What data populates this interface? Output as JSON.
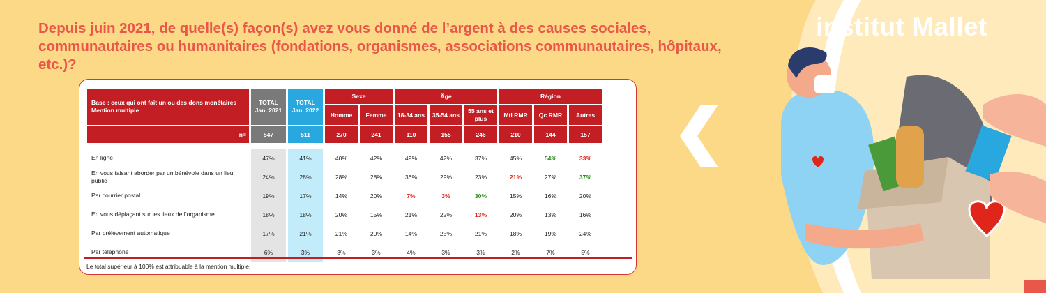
{
  "question": "Depuis juin 2021, de quelle(s) façon(s) avez vous donné de l’argent à des causes sociales, communautaires ou humanitaires (fondations, organismes, associations communautaires, hôpitaux, etc.)?",
  "brand": "institut Mallet",
  "colors": {
    "accent": "#e8574a",
    "header_red": "#c21e24",
    "total_2021": "#7a7a7a",
    "total_2022": "#29a8df",
    "background": "#fcd987"
  },
  "chart_data": {
    "type": "table",
    "base_label": "Base : ceux qui ont fait un ou des dons monétaires",
    "base_note": "Mention multiple",
    "total_2021_label": "TOTAL Jan. 2021",
    "total_2022_label": "TOTAL Jan. 2022",
    "groups": {
      "sexe": "Sexe",
      "age": "Âge",
      "region": "Région"
    },
    "subcolumns": [
      "Homme",
      "Femme",
      "18-34 ans",
      "35-54 ans",
      "55 ans et plus",
      "Mtl RMR",
      "Qc RMR",
      "Autres"
    ],
    "n_label": "n=",
    "n_values": [
      "547",
      "511",
      "270",
      "241",
      "110",
      "155",
      "246",
      "210",
      "144",
      "157"
    ],
    "rows": [
      {
        "label": "En ligne",
        "values": [
          "47%",
          "41%",
          "40%",
          "42%",
          "49%",
          "42%",
          "37%",
          "45%",
          "54%",
          "33%"
        ],
        "flags": [
          "",
          "",
          "",
          "",
          "",
          "",
          "",
          "",
          "green",
          "red"
        ]
      },
      {
        "label": "En vous faisant aborder par un bénévole dans un lieu public",
        "values": [
          "24%",
          "28%",
          "28%",
          "28%",
          "36%",
          "29%",
          "23%",
          "21%",
          "27%",
          "37%"
        ],
        "flags": [
          "",
          "",
          "",
          "",
          "",
          "",
          "",
          "red",
          "",
          "green"
        ]
      },
      {
        "label": "Par courrier postal",
        "values": [
          "19%",
          "17%",
          "14%",
          "20%",
          "7%",
          "3%",
          "30%",
          "15%",
          "16%",
          "20%"
        ],
        "flags": [
          "",
          "",
          "",
          "",
          "red",
          "red",
          "green",
          "",
          "",
          ""
        ]
      },
      {
        "label": "En vous déplaçant sur les lieux de l’organisme",
        "values": [
          "18%",
          "18%",
          "20%",
          "15%",
          "21%",
          "22%",
          "13%",
          "20%",
          "13%",
          "16%"
        ],
        "flags": [
          "",
          "",
          "",
          "",
          "",
          "",
          "red",
          "",
          "",
          ""
        ]
      },
      {
        "label": "Par prélèvement automatique",
        "values": [
          "17%",
          "21%",
          "21%",
          "20%",
          "14%",
          "25%",
          "21%",
          "18%",
          "19%",
          "24%"
        ],
        "flags": [
          "",
          "",
          "",
          "",
          "",
          "",
          "",
          "",
          "",
          ""
        ]
      },
      {
        "label": "Par téléphone",
        "values": [
          "6%",
          "3%",
          "3%",
          "3%",
          "4%",
          "3%",
          "3%",
          "2%",
          "7%",
          "5%"
        ],
        "flags": [
          "",
          "",
          "",
          "",
          "",
          "",
          "",
          "",
          "",
          ""
        ]
      }
    ],
    "footnote": "Le total supérieur à 100% est attribuable à la mention multiple."
  }
}
